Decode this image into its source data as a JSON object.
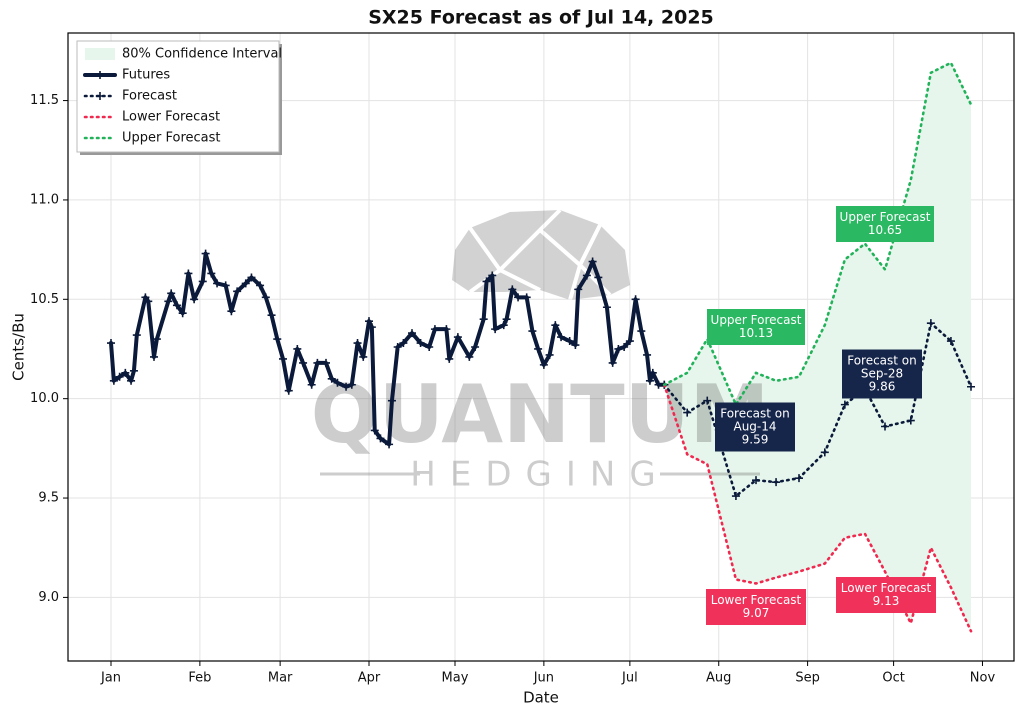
{
  "chart_data": {
    "type": "line",
    "title": "SX25 Forecast as of Jul 14, 2025",
    "xlabel": "Date",
    "ylabel": "Cents/Bu",
    "watermark": {
      "title": "QUANTUM",
      "subtitle": "HEDGING"
    },
    "xlim": [
      -15,
      315
    ],
    "ylim": [
      8.68,
      11.84
    ],
    "xticks": [
      {
        "value": 0,
        "label": "Jan"
      },
      {
        "value": 31,
        "label": "Feb"
      },
      {
        "value": 59,
        "label": "Mar"
      },
      {
        "value": 90,
        "label": "Apr"
      },
      {
        "value": 120,
        "label": "May"
      },
      {
        "value": 151,
        "label": "Jun"
      },
      {
        "value": 181,
        "label": "Jul"
      },
      {
        "value": 212,
        "label": "Aug"
      },
      {
        "value": 243,
        "label": "Sep"
      },
      {
        "value": 273,
        "label": "Oct"
      },
      {
        "value": 304,
        "label": "Nov"
      }
    ],
    "yticks": [
      {
        "value": 9.0,
        "label": "9.0"
      },
      9.5,
      {
        "value": 10.0,
        "label": "10.0"
      },
      10.5,
      {
        "value": 11.0,
        "label": "11.0"
      },
      11.5
    ],
    "grid": true,
    "legend": "upper left",
    "band": {
      "name": "80% Confidence Interval",
      "color": "#e6f6ec",
      "lower": 2,
      "upper": 3
    },
    "series": [
      {
        "name": "Futures",
        "color": "#0b1a3a",
        "style": "solid",
        "marker": "+",
        "x": [
          0,
          1,
          3,
          5,
          7,
          8,
          9,
          12,
          13,
          15,
          16,
          20,
          21,
          23,
          25,
          27,
          29,
          32,
          33,
          35,
          37,
          40,
          42,
          44,
          47,
          49,
          52,
          54,
          56,
          58,
          60,
          62,
          65,
          67,
          70,
          72,
          75,
          77,
          79,
          82,
          84,
          86,
          88,
          90,
          91,
          92,
          94,
          97,
          98,
          100,
          102,
          105,
          108,
          111,
          113,
          117,
          118,
          121,
          125,
          127,
          130,
          131,
          133,
          134,
          137,
          138,
          140,
          142,
          145,
          147,
          149,
          151,
          153,
          155,
          157,
          160,
          162,
          163,
          166,
          168,
          170,
          173,
          175,
          177,
          179,
          181,
          183,
          185,
          187,
          188,
          189,
          191,
          193
        ],
        "values": [
          10.28,
          10.09,
          10.11,
          10.13,
          10.09,
          10.14,
          10.32,
          10.51,
          10.49,
          10.21,
          10.3,
          10.49,
          10.53,
          10.47,
          10.43,
          10.63,
          10.5,
          10.59,
          10.73,
          10.63,
          10.58,
          10.57,
          10.44,
          10.54,
          10.58,
          10.61,
          10.57,
          10.51,
          10.42,
          10.3,
          10.2,
          10.04,
          10.25,
          10.18,
          10.07,
          10.18,
          10.18,
          10.1,
          10.08,
          10.06,
          10.07,
          10.28,
          10.21,
          10.39,
          10.36,
          9.84,
          9.8,
          9.77,
          9.99,
          10.26,
          10.28,
          10.33,
          10.28,
          10.26,
          10.35,
          10.35,
          10.2,
          10.31,
          10.21,
          10.26,
          10.4,
          10.59,
          10.62,
          10.35,
          10.37,
          10.4,
          10.55,
          10.51,
          10.51,
          10.34,
          10.25,
          10.17,
          10.22,
          10.37,
          10.31,
          10.29,
          10.27,
          10.55,
          10.62,
          10.69,
          10.61,
          10.46,
          10.18,
          10.25,
          10.26,
          10.29,
          10.5,
          10.34,
          10.22,
          10.09,
          10.13,
          10.07,
          10.07
        ]
      },
      {
        "name": "Forecast",
        "color": "#0b1a3a",
        "style": "dotted",
        "marker": "+",
        "x": [
          193,
          201,
          208,
          218,
          225,
          232,
          240,
          249,
          256,
          263,
          270,
          279,
          286,
          293,
          300
        ],
        "values": [
          10.07,
          9.93,
          9.99,
          9.51,
          9.59,
          9.58,
          9.6,
          9.73,
          9.97,
          10.05,
          9.86,
          9.89,
          10.38,
          10.29,
          10.06
        ]
      },
      {
        "name": "Lower Forecast",
        "color": "#f0294f",
        "style": "dotted",
        "x": [
          193,
          201,
          208,
          218,
          225,
          232,
          240,
          249,
          256,
          263,
          270,
          279,
          286,
          293,
          300
        ],
        "values": [
          10.07,
          9.72,
          9.67,
          9.09,
          9.07,
          9.1,
          9.13,
          9.17,
          9.3,
          9.32,
          9.13,
          8.87,
          9.25,
          9.05,
          8.83
        ]
      },
      {
        "name": "Upper Forecast",
        "color": "#22b35a",
        "style": "dotted",
        "x": [
          193,
          201,
          208,
          218,
          225,
          232,
          240,
          249,
          256,
          263,
          270,
          279,
          286,
          293,
          300
        ],
        "values": [
          10.07,
          10.13,
          10.3,
          9.97,
          10.13,
          10.09,
          10.11,
          10.37,
          10.7,
          10.78,
          10.65,
          11.1,
          11.64,
          11.69,
          11.48
        ]
      }
    ],
    "annotations": [
      {
        "lines": [
          "Upper Forecast",
          "10.13"
        ],
        "color": "#2bb862"
      },
      {
        "lines": [
          "Forecast on",
          "Aug-14",
          "9.59"
        ],
        "color": "#16254a"
      },
      {
        "lines": [
          "Lower Forecast",
          "9.07"
        ],
        "color": "#f0315a"
      },
      {
        "lines": [
          "Upper Forecast",
          "10.65"
        ],
        "color": "#2bb862"
      },
      {
        "lines": [
          "Forecast on",
          "Sep-28",
          "9.86"
        ],
        "color": "#16254a"
      },
      {
        "lines": [
          "Lower Forecast",
          "9.13"
        ],
        "color": "#f0315a"
      }
    ]
  }
}
